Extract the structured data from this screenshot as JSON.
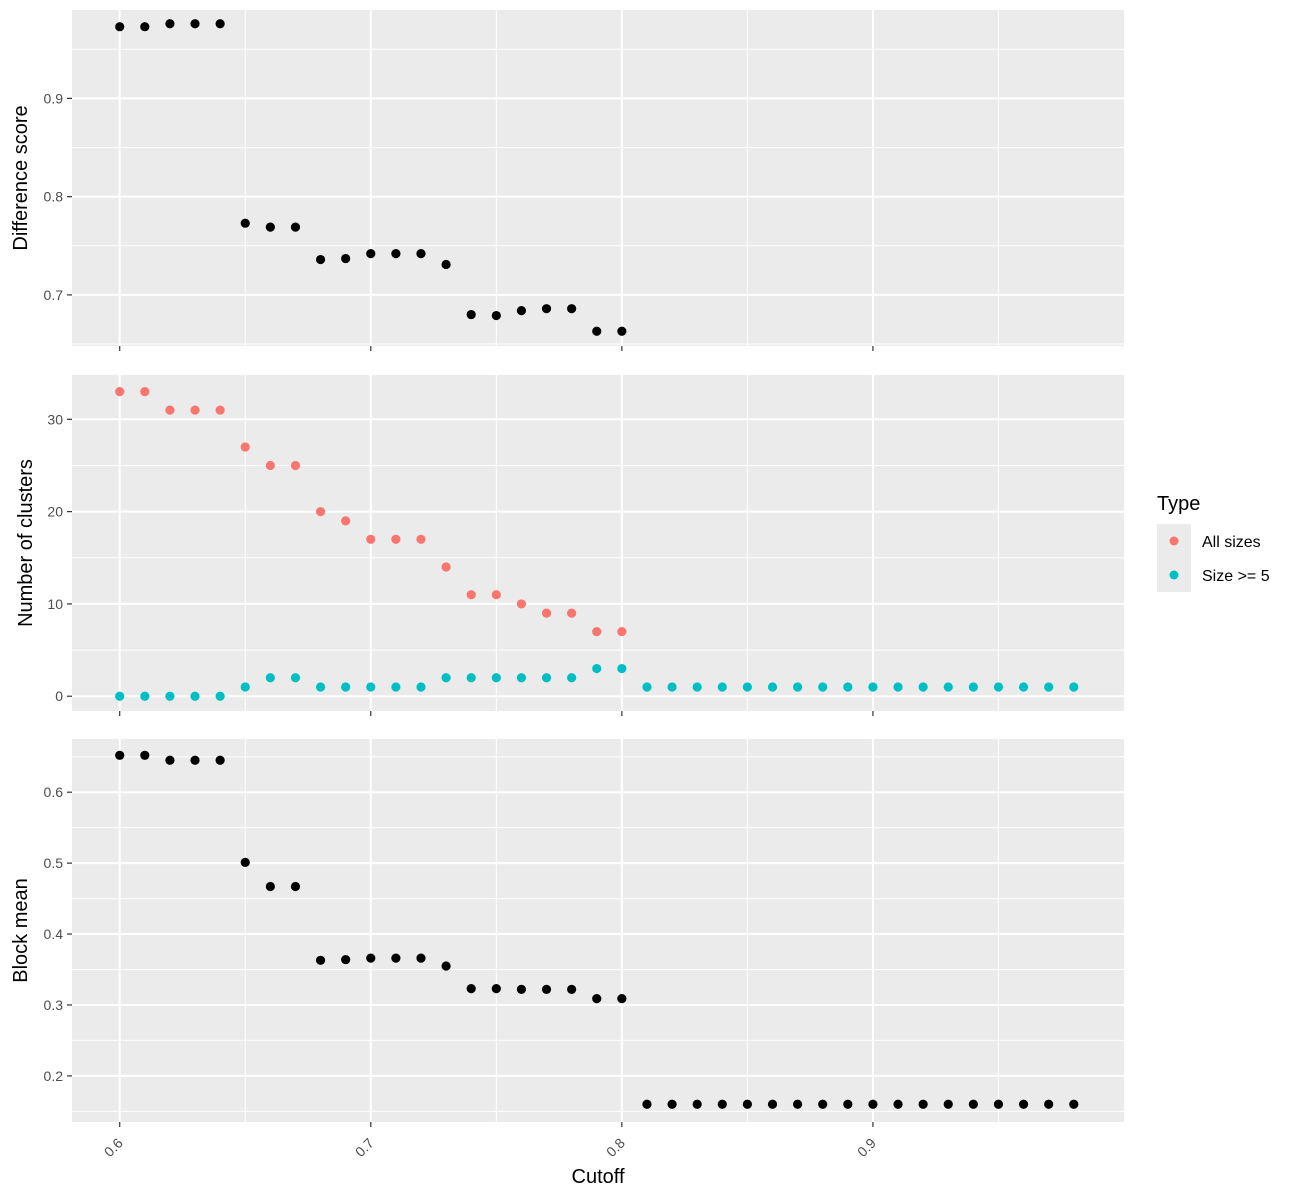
{
  "chart_data": {
    "type": "scatter",
    "xlabel": "Cutoff",
    "xlim": [
      0.581,
      1.0
    ],
    "x_ticks": [
      0.6,
      0.7,
      0.8,
      0.9
    ],
    "x_tick_labels": [
      "0.6",
      "0.7",
      "0.8",
      "0.9"
    ],
    "grid": true,
    "legend": {
      "title": "Type",
      "position": "right",
      "entries": [
        {
          "label": "All sizes",
          "color": "#F8766D"
        },
        {
          "label": "Size >= 5",
          "color": "#00BFC4"
        }
      ]
    },
    "panels": [
      {
        "ylabel": "Difference score",
        "ylim": [
          0.648,
          0.99
        ],
        "y_ticks": [
          0.7,
          0.8,
          0.9
        ],
        "y_tick_labels": [
          "0.7",
          "0.8",
          "0.9"
        ],
        "series": [
          {
            "color": "#000000",
            "x": [
              0.6,
              0.61,
              0.62,
              0.63,
              0.64,
              0.65,
              0.66,
              0.67,
              0.68,
              0.69,
              0.7,
              0.71,
              0.72,
              0.73,
              0.74,
              0.75,
              0.76,
              0.77,
              0.78,
              0.79,
              0.8
            ],
            "y": [
              0.973,
              0.973,
              0.976,
              0.976,
              0.976,
              0.773,
              0.769,
              0.769,
              0.736,
              0.737,
              0.742,
              0.742,
              0.742,
              0.731,
              0.68,
              0.679,
              0.684,
              0.686,
              0.686,
              0.663,
              0.663
            ]
          }
        ]
      },
      {
        "ylabel": "Number of clusters",
        "ylim": [
          -1.6,
          34.8
        ],
        "y_ticks": [
          0,
          10,
          20,
          30
        ],
        "y_tick_labels": [
          "0",
          "10",
          "20",
          "30"
        ],
        "series": [
          {
            "name": "All sizes",
            "color": "#F8766D",
            "x": [
              0.6,
              0.61,
              0.62,
              0.63,
              0.64,
              0.65,
              0.66,
              0.67,
              0.68,
              0.69,
              0.7,
              0.71,
              0.72,
              0.73,
              0.74,
              0.75,
              0.76,
              0.77,
              0.78,
              0.79,
              0.8
            ],
            "y": [
              33,
              33,
              31,
              31,
              31,
              27,
              25,
              25,
              20,
              19,
              17,
              17,
              17,
              14,
              11,
              11,
              10,
              9,
              9,
              7,
              7
            ]
          },
          {
            "name": "Size >= 5",
            "color": "#00BFC4",
            "x": [
              0.6,
              0.61,
              0.62,
              0.63,
              0.64,
              0.65,
              0.66,
              0.67,
              0.68,
              0.69,
              0.7,
              0.71,
              0.72,
              0.73,
              0.74,
              0.75,
              0.76,
              0.77,
              0.78,
              0.79,
              0.8,
              0.81,
              0.82,
              0.83,
              0.84,
              0.85,
              0.86,
              0.87,
              0.88,
              0.89,
              0.9,
              0.91,
              0.92,
              0.93,
              0.94,
              0.95,
              0.96,
              0.97,
              0.98
            ],
            "y": [
              0,
              0,
              0,
              0,
              0,
              1,
              2,
              2,
              1,
              1,
              1,
              1,
              1,
              2,
              2,
              2,
              2,
              2,
              2,
              3,
              3,
              1,
              1,
              1,
              1,
              1,
              1,
              1,
              1,
              1,
              1,
              1,
              1,
              1,
              1,
              1,
              1,
              1,
              1
            ]
          }
        ]
      },
      {
        "ylabel": "Block mean",
        "ylim": [
          0.135,
          0.675
        ],
        "y_ticks": [
          0.2,
          0.3,
          0.4,
          0.5,
          0.6
        ],
        "y_tick_labels": [
          "0.2",
          "0.3",
          "0.4",
          "0.5",
          "0.6"
        ],
        "series": [
          {
            "color": "#000000",
            "x": [
              0.6,
              0.61,
              0.62,
              0.63,
              0.64,
              0.65,
              0.66,
              0.67,
              0.68,
              0.69,
              0.7,
              0.71,
              0.72,
              0.73,
              0.74,
              0.75,
              0.76,
              0.77,
              0.78,
              0.79,
              0.8,
              0.81,
              0.82,
              0.83,
              0.84,
              0.85,
              0.86,
              0.87,
              0.88,
              0.89,
              0.9,
              0.91,
              0.92,
              0.93,
              0.94,
              0.95,
              0.96,
              0.97,
              0.98
            ],
            "y": [
              0.652,
              0.652,
              0.645,
              0.645,
              0.645,
              0.501,
              0.467,
              0.467,
              0.363,
              0.364,
              0.366,
              0.366,
              0.366,
              0.355,
              0.323,
              0.323,
              0.322,
              0.322,
              0.322,
              0.309,
              0.309,
              0.16,
              0.16,
              0.16,
              0.16,
              0.16,
              0.16,
              0.16,
              0.16,
              0.16,
              0.16,
              0.16,
              0.16,
              0.16,
              0.16,
              0.16,
              0.16,
              0.16,
              0.16
            ]
          }
        ]
      }
    ]
  }
}
